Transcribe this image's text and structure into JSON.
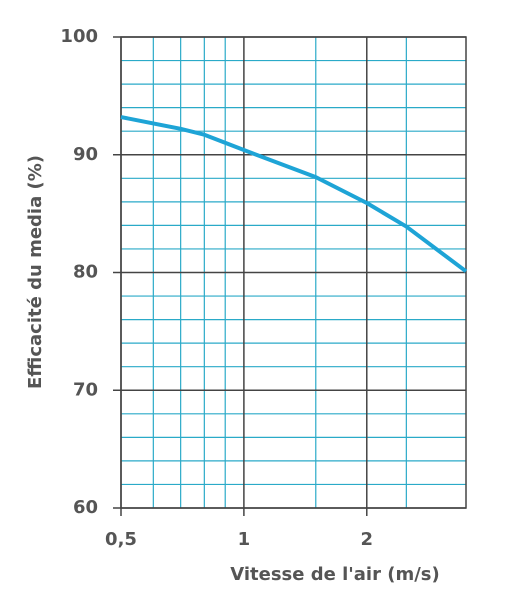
{
  "chart_data": {
    "type": "line",
    "x_scale": "log",
    "x_label": "Vitesse de l'air (m/s)",
    "y_label": "Efficacité du media (%)",
    "x": [
      0.5,
      0.7,
      0.8,
      1,
      1.5,
      2,
      2.5,
      3.5
    ],
    "series": [
      {
        "color": "#1ea4d6",
        "values": [
          93.2,
          92.2,
          91.7,
          90.4,
          88.1,
          85.9,
          83.9,
          80.1
        ]
      }
    ],
    "xlim": [
      0.5,
      3.5
    ],
    "xticks": [
      {
        "value": 0.5,
        "label": "0,5"
      },
      1,
      2
    ],
    "x_minor_grid": [
      0.6,
      0.7,
      0.8,
      0.9,
      1.5,
      2.5
    ],
    "ylim": [
      60,
      100
    ],
    "yticks": [
      60,
      70,
      80,
      90,
      100
    ],
    "y_minor_grid": [
      62,
      64,
      66,
      68,
      72,
      74,
      76,
      78,
      82,
      84,
      86,
      88,
      92,
      94,
      96,
      98
    ],
    "grid": true,
    "grid_color": "#2aaac8",
    "major_grid_color": "#444444"
  }
}
